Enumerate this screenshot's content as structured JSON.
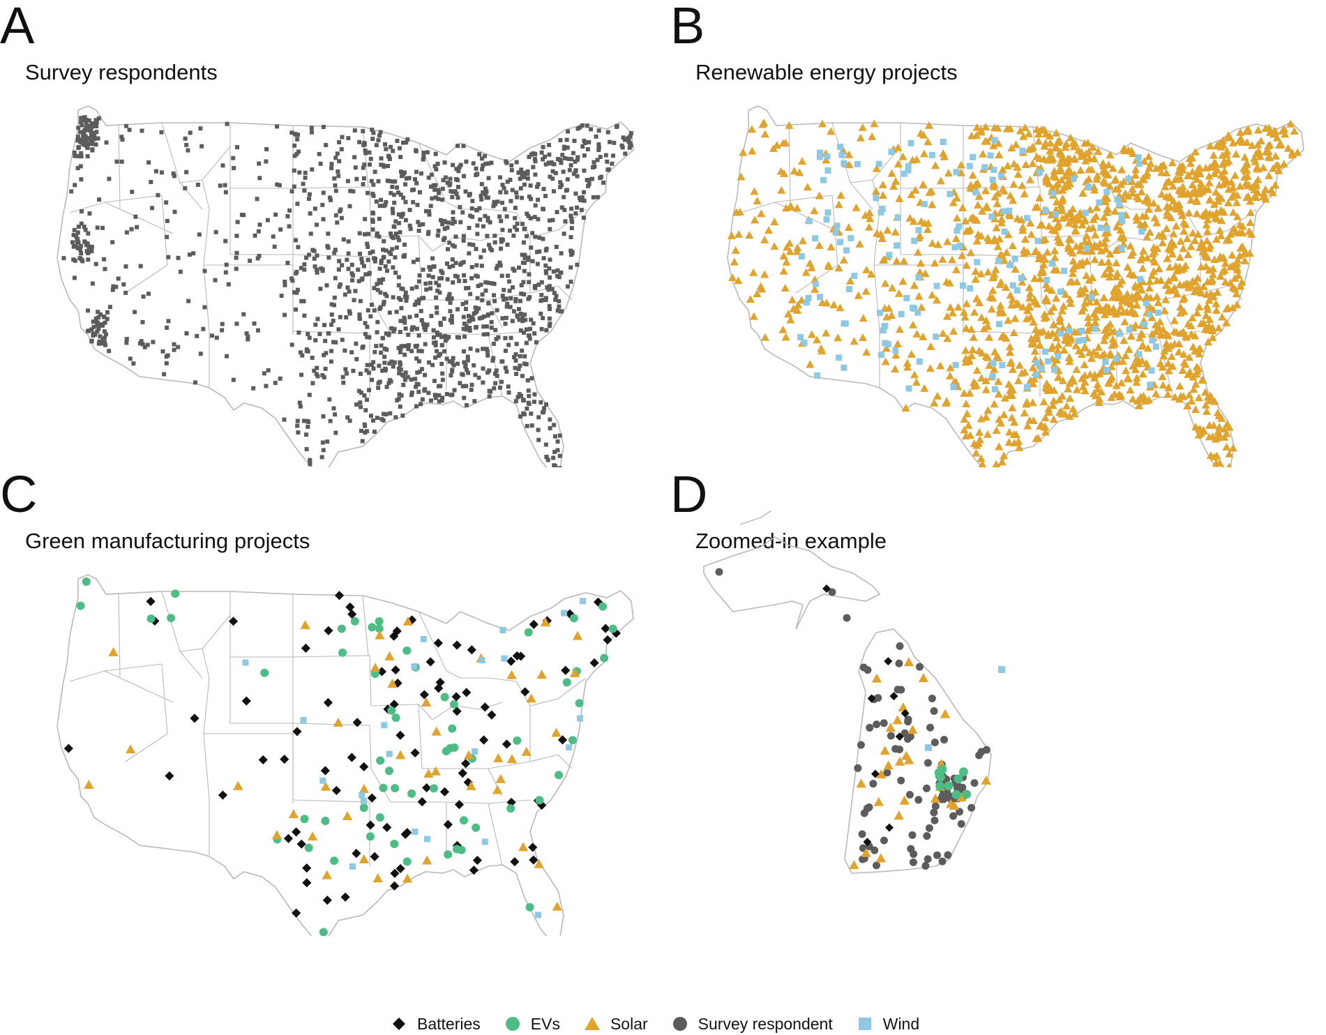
{
  "colors": {
    "batteries": "#111111",
    "evs": "#4dbd85",
    "solar": "#e0a32e",
    "survey": "#5c5c5c",
    "wind": "#8ec8e3",
    "borders": "#b8b8b8"
  },
  "panels": [
    {
      "letter": "A",
      "title": "Survey respondents"
    },
    {
      "letter": "B",
      "title": "Renewable energy projects"
    },
    {
      "letter": "C",
      "title": "Green manufacturing projects"
    },
    {
      "letter": "D",
      "title": "Zoomed-in example"
    }
  ],
  "legend": [
    {
      "label": "Batteries",
      "shape": "diamond",
      "color_key": "batteries"
    },
    {
      "label": "EVs",
      "shape": "circle",
      "color_key": "evs"
    },
    {
      "label": "Solar",
      "shape": "triangle",
      "color_key": "solar"
    },
    {
      "label": "Survey respondent",
      "shape": "circle",
      "color_key": "survey"
    },
    {
      "label": "Wind",
      "shape": "square",
      "color_key": "wind"
    }
  ]
}
